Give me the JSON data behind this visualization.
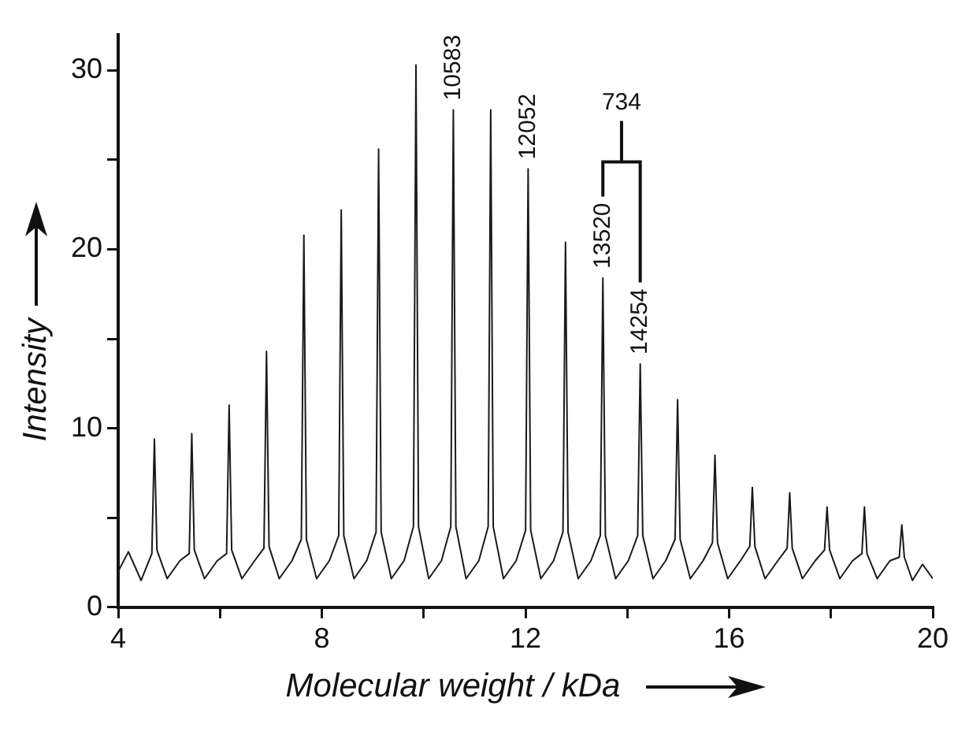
{
  "chart_data": {
    "type": "line",
    "xlabel": "Molecular weight / kDa",
    "ylabel": "Intensity",
    "x": [
      4.0,
      4.2,
      4.45,
      4.661,
      4.711,
      4.761,
      4.961,
      5.211,
      5.395,
      5.445,
      5.495,
      5.695,
      5.945,
      6.129,
      6.179,
      6.229,
      6.429,
      6.679,
      6.863,
      6.913,
      6.963,
      7.163,
      7.413,
      7.597,
      7.647,
      7.697,
      7.897,
      8.147,
      8.331,
      8.381,
      8.431,
      8.631,
      8.881,
      9.065,
      9.115,
      9.165,
      9.365,
      9.615,
      9.799,
      9.849,
      9.899,
      10.099,
      10.349,
      10.533,
      10.583,
      10.633,
      10.833,
      11.083,
      11.267,
      11.317,
      11.367,
      11.567,
      11.817,
      12.002,
      12.052,
      12.102,
      12.302,
      12.552,
      12.736,
      12.786,
      12.836,
      13.036,
      13.286,
      13.47,
      13.52,
      13.57,
      13.77,
      14.02,
      14.204,
      14.254,
      14.304,
      14.504,
      14.754,
      14.938,
      14.988,
      15.038,
      15.238,
      15.488,
      15.672,
      15.722,
      15.772,
      15.972,
      16.222,
      16.406,
      16.456,
      16.506,
      16.706,
      16.956,
      17.14,
      17.19,
      17.24,
      17.44,
      17.69,
      17.874,
      17.924,
      17.974,
      18.174,
      18.424,
      18.608,
      18.658,
      18.708,
      18.908,
      19.158,
      19.342,
      19.392,
      19.442,
      19.6,
      19.8,
      20.0
    ],
    "values": [
      2.0,
      3.1,
      1.5,
      3.0,
      9.4,
      3.2,
      1.6,
      2.6,
      3.0,
      9.7,
      3.2,
      1.6,
      2.6,
      3.0,
      11.3,
      3.2,
      1.6,
      2.6,
      3.3,
      14.3,
      3.4,
      1.6,
      2.6,
      3.8,
      20.8,
      3.8,
      1.6,
      2.6,
      4.0,
      22.2,
      4.0,
      1.6,
      2.6,
      4.2,
      25.6,
      4.2,
      1.6,
      2.6,
      4.5,
      30.3,
      4.5,
      1.6,
      2.6,
      4.5,
      27.8,
      4.5,
      1.6,
      2.6,
      4.5,
      27.8,
      4.5,
      1.6,
      2.6,
      4.3,
      24.5,
      4.3,
      1.6,
      2.6,
      4.2,
      20.4,
      4.2,
      1.6,
      2.6,
      4.0,
      18.4,
      4.0,
      1.6,
      2.6,
      4.0,
      13.6,
      4.0,
      1.6,
      2.6,
      3.8,
      11.6,
      3.8,
      1.6,
      2.6,
      3.6,
      8.5,
      3.6,
      1.6,
      2.6,
      3.4,
      6.7,
      3.4,
      1.6,
      2.6,
      3.3,
      6.4,
      3.3,
      1.6,
      2.6,
      3.2,
      5.6,
      3.2,
      1.6,
      2.6,
      3.0,
      5.6,
      3.0,
      1.6,
      2.6,
      2.8,
      4.6,
      2.8,
      1.5,
      2.4,
      1.6
    ],
    "color": "#1a1a1a",
    "xlim": [
      4,
      20
    ],
    "xticks": [
      4,
      {
        "value": 6,
        "label": null
      },
      8,
      {
        "value": 10,
        "label": null
      },
      12,
      {
        "value": 14,
        "label": null
      },
      16,
      {
        "value": 18,
        "label": null
      },
      20
    ],
    "ylim": [
      0,
      32
    ],
    "yticks": [
      0,
      {
        "value": 5,
        "label": null
      },
      10,
      {
        "value": 15,
        "label": null
      },
      20,
      {
        "value": 25,
        "label": null
      },
      30
    ],
    "annotations": [
      {
        "text": "10583",
        "x": 10.583,
        "y": 27.8
      },
      {
        "text": "12052",
        "x": 12.052,
        "y": 24.5
      },
      {
        "text": "13520",
        "x": 13.52,
        "y": 18.4
      },
      {
        "text": "14254",
        "x": 14.254,
        "y": 13.6
      },
      "734"
    ],
    "grid": false,
    "legend": false,
    "marker": "none",
    "line_style": "solid"
  }
}
